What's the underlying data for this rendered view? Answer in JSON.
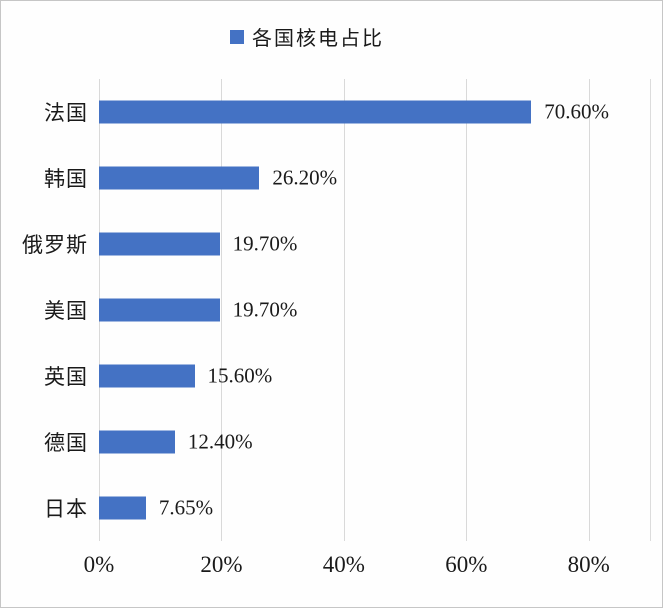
{
  "legend": {
    "label": "各国核电占比",
    "marker_color": "#4472C4"
  },
  "chart_data": {
    "type": "bar",
    "orientation": "horizontal",
    "title": "各国核电占比",
    "categories": [
      "法国",
      "韩国",
      "俄罗斯",
      "美国",
      "英国",
      "德国",
      "日本"
    ],
    "values": [
      70.6,
      26.2,
      19.7,
      19.7,
      15.6,
      12.4,
      7.65
    ],
    "data_labels": [
      "70.60%",
      "26.20%",
      "19.70%",
      "19.70%",
      "15.60%",
      "12.40%",
      "7.65%"
    ],
    "x_ticks": [
      "0%",
      "20%",
      "40%",
      "60%",
      "80%"
    ],
    "x_tick_values": [
      0,
      20,
      40,
      60,
      80
    ],
    "xlim": [
      0,
      90
    ],
    "bar_color": "#4472C4",
    "gridline_color": "#d9d9d9",
    "grid": true,
    "legend_position": "top"
  }
}
